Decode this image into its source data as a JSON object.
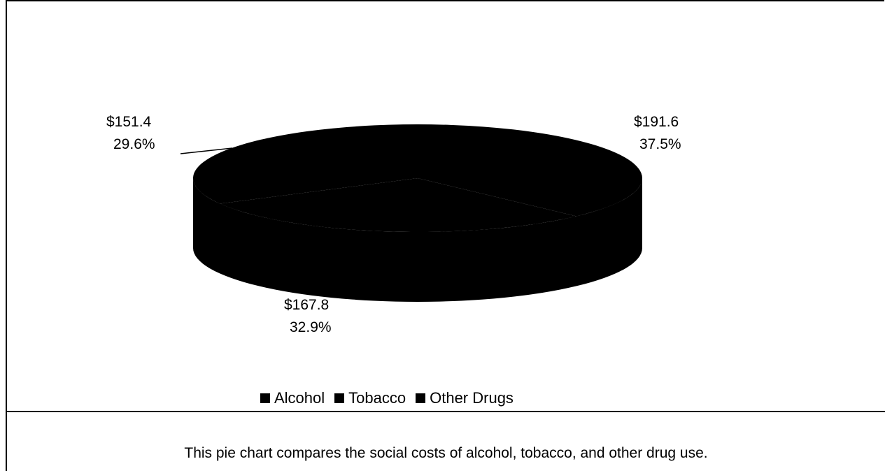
{
  "chart_data": {
    "type": "pie",
    "categories": [
      "Alcohol",
      "Tobacco",
      "Other Drugs"
    ],
    "values": [
      191.6,
      151.4,
      167.8
    ],
    "percents": [
      "37.5%",
      "29.6%",
      "32.9%"
    ],
    "value_labels": [
      "$191.6",
      "$151.4",
      "$167.8"
    ],
    "legend_placement": "bottom",
    "style": "3d",
    "colors": [
      "#000000",
      "#000000",
      "#000000"
    ]
  },
  "caption": "This pie chart compares the social costs of alcohol, tobacco, and other drug use."
}
